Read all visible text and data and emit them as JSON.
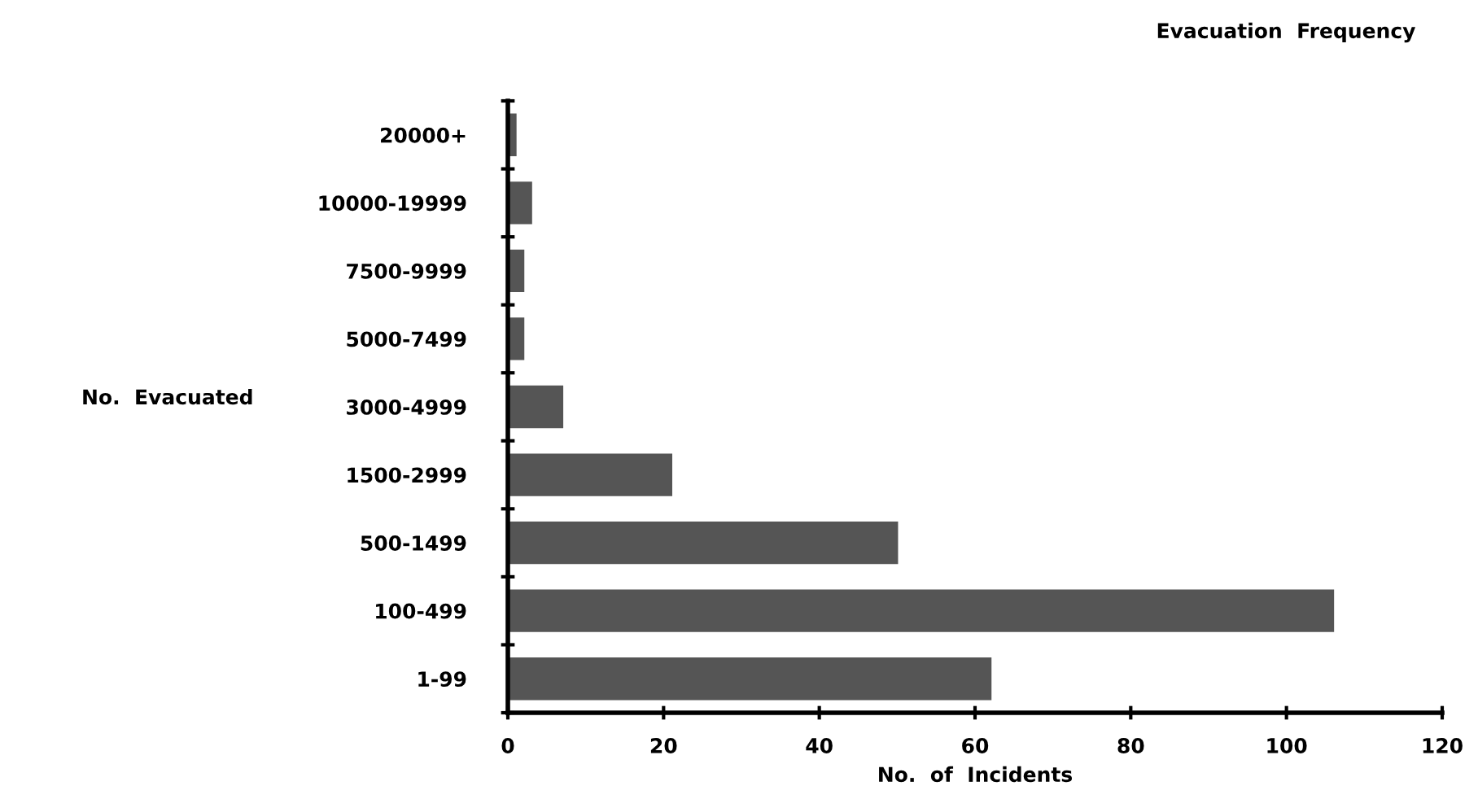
{
  "chart_data": {
    "type": "bar",
    "orientation": "horizontal",
    "title": "Evacuation  Frequency",
    "xlabel": "No.  of  Incidents",
    "ylabel": "No.  Evacuated",
    "categories": [
      "20000+",
      "10000-19999",
      "7500-9999",
      "5000-7499",
      "3000-4999",
      "1500-2999",
      "500-1499",
      "100-499",
      "1-99"
    ],
    "values": [
      1,
      3,
      2,
      2,
      7,
      21,
      50,
      106,
      62
    ],
    "color": "#555555",
    "xlim": [
      0,
      120
    ],
    "xticks": [
      0,
      20,
      40,
      60,
      80,
      100,
      120
    ],
    "grid": false,
    "legend": false
  }
}
